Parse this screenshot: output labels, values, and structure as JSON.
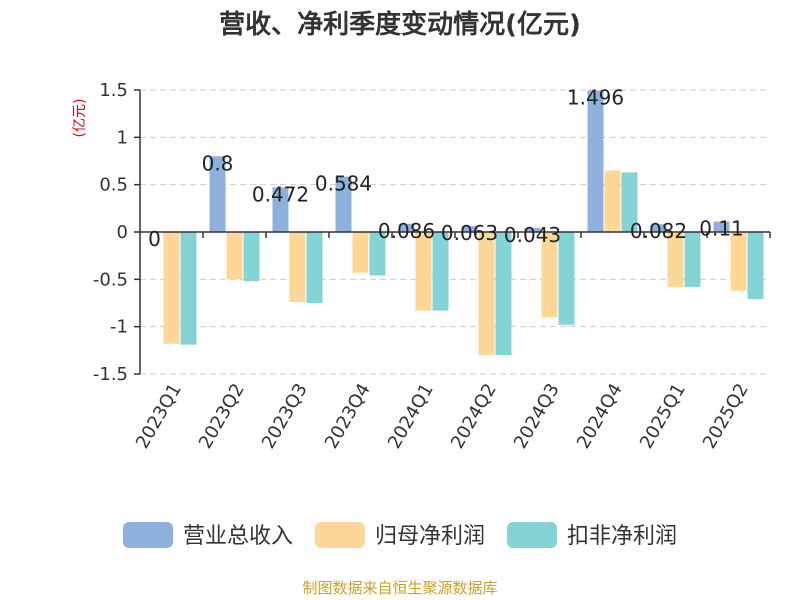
{
  "chart_data": {
    "type": "bar",
    "title": "营收、净利季度变动情况(亿元)",
    "unit_label": "(亿元)",
    "categories": [
      "2023Q1",
      "2023Q2",
      "2023Q3",
      "2023Q4",
      "2024Q1",
      "2024Q2",
      "2024Q3",
      "2024Q4",
      "2025Q1",
      "2025Q2"
    ],
    "series": [
      {
        "name": "营业总收入",
        "color": "#8EB0DD",
        "values": [
          0,
          0.8,
          0.472,
          0.584,
          0.086,
          0.063,
          0.043,
          1.496,
          0.082,
          0.11
        ],
        "labels": [
          "0",
          "0.8",
          "0.472",
          "0.584",
          "0.086",
          "0.063",
          "0.043",
          "1.496",
          "0.082",
          "0.11"
        ]
      },
      {
        "name": "归母净利润",
        "color": "#FDD797",
        "values": [
          -1.18,
          -0.5,
          -0.74,
          -0.43,
          -0.83,
          -1.3,
          -0.9,
          0.65,
          -0.58,
          -0.62
        ]
      },
      {
        "name": "扣非净利润",
        "color": "#84D4D6",
        "values": [
          -1.19,
          -0.52,
          -0.75,
          -0.46,
          -0.83,
          -1.3,
          -0.98,
          0.63,
          -0.58,
          -0.71
        ]
      }
    ],
    "y_ticks": [
      "-1.5",
      "-1",
      "-0.5",
      "0",
      "0.5",
      "1",
      "1.5"
    ],
    "ylim": [
      -1.5,
      1.5
    ],
    "grid": true,
    "legend_position": "bottom",
    "source": "制图数据来自恒生聚源数据库",
    "colors": {
      "axis": "#333333",
      "grid": "#CCCCCC",
      "unit": "#E0001B",
      "source": "#C9A227"
    }
  }
}
